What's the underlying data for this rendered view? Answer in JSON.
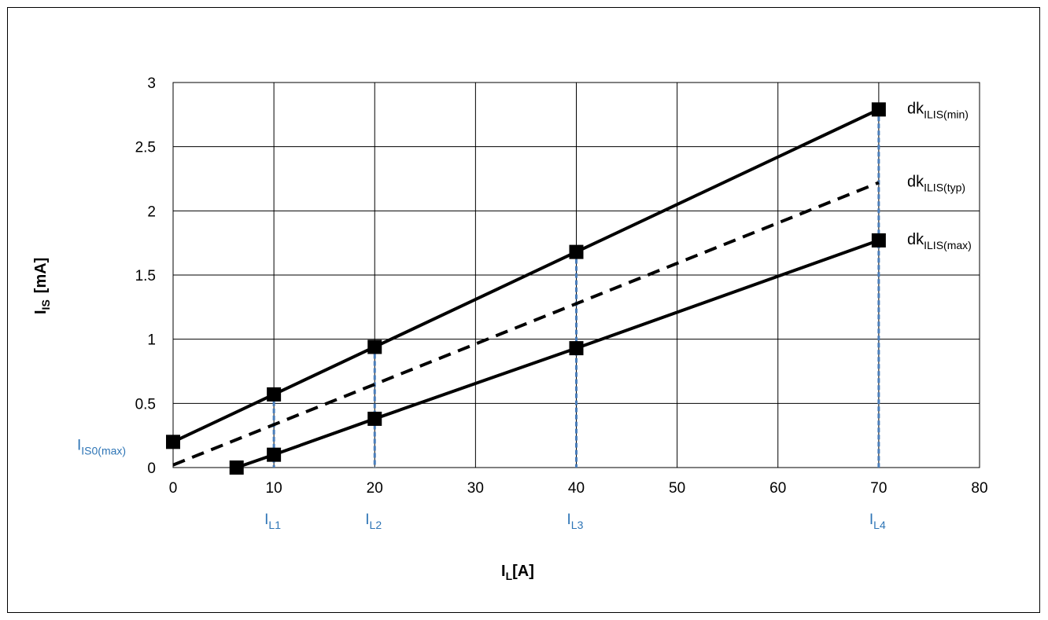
{
  "chart_data": {
    "type": "line",
    "title": "",
    "xlabel": {
      "main": "I",
      "sub": "L",
      "suffix": "[A]"
    },
    "ylabel": {
      "main": "I",
      "sub": "IS",
      "suffix": "[mA]"
    },
    "xlim": [
      0,
      80
    ],
    "ylim": [
      0,
      3
    ],
    "x_ticks": [
      0,
      10,
      20,
      30,
      40,
      50,
      60,
      70,
      80
    ],
    "y_ticks": [
      0,
      0.5,
      1,
      1.5,
      2,
      2.5,
      3
    ],
    "x_tick_labels": [
      "0",
      "10",
      "20",
      "30",
      "40",
      "50",
      "60",
      "70",
      "80"
    ],
    "y_tick_labels": [
      "0",
      "0.5",
      "1",
      "1.5",
      "2",
      "2.5",
      "3"
    ],
    "grid": true,
    "series": [
      {
        "name": "dkILIS(min)",
        "label": {
          "main": "dk",
          "sub": "ILIS(min)"
        },
        "style": "solid",
        "color": "#000000",
        "x": [
          0,
          10,
          20,
          40,
          70
        ],
        "y": [
          0.2,
          0.57,
          0.94,
          1.68,
          2.79
        ],
        "markers": true
      },
      {
        "name": "dkILIS(typ)",
        "label": {
          "main": "dk",
          "sub": "ILIS(typ)"
        },
        "style": "dashed",
        "color": "#000000",
        "x": [
          0,
          70
        ],
        "y": [
          0.02,
          2.22
        ],
        "markers": false
      },
      {
        "name": "dkILIS(max)",
        "label": {
          "main": "dk",
          "sub": "ILIS(max)"
        },
        "style": "solid",
        "color": "#000000",
        "x": [
          6.3,
          10,
          20,
          40,
          70
        ],
        "y": [
          0,
          0.1,
          0.38,
          0.93,
          1.77
        ],
        "markers": true
      }
    ],
    "reference_lines": [
      {
        "x": 10,
        "label": {
          "main": "I",
          "sub": "L1"
        }
      },
      {
        "x": 20,
        "label": {
          "main": "I",
          "sub": "L2"
        }
      },
      {
        "x": 40,
        "label": {
          "main": "I",
          "sub": "L3"
        }
      },
      {
        "x": 70,
        "label": {
          "main": "I",
          "sub": "L4"
        }
      }
    ],
    "y_annotation": {
      "y": 0.2,
      "label": {
        "main": "I",
        "sub": "IS0(max)"
      }
    },
    "colors": {
      "line": "#000000",
      "grid": "#000000",
      "reference": "#4a7ebb",
      "annotation": "#2e75b6"
    }
  }
}
